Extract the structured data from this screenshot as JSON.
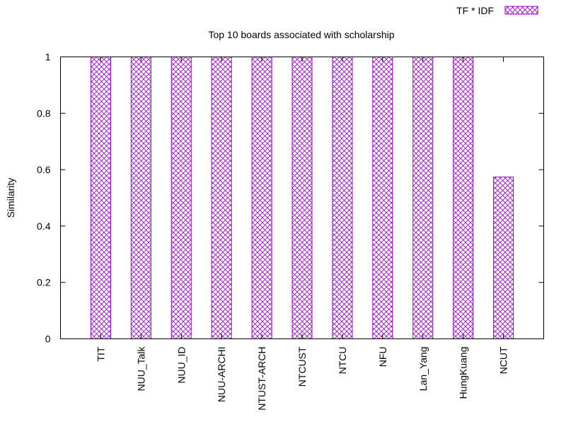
{
  "chart_data": {
    "type": "bar",
    "title": "Top 10 boards associated with scholarship",
    "xlabel": "",
    "ylabel": "Similarity",
    "ylim": [
      0,
      1
    ],
    "yticks": [
      0,
      0.2,
      0.4,
      0.6,
      0.8,
      1
    ],
    "ytick_labels": [
      "0",
      "0.2",
      "0.4",
      "0.6",
      "0.8",
      "1"
    ],
    "categories": [
      "TIT",
      "NUU_Talk",
      "NUU_ID",
      "NUU-ARCHI",
      "NTUST-ARCH",
      "NTCUST",
      "NTCU",
      "NFU",
      "Lan_Yang",
      "HungKuang",
      "NCUT"
    ],
    "series": [
      {
        "name": "TF * IDF",
        "values": [
          1,
          1,
          1,
          1,
          1,
          1,
          1,
          1,
          1,
          1,
          0.574
        ]
      }
    ],
    "legend_position": "top-right",
    "grid": false,
    "bar_color": "#9400d3",
    "bar_fill": "crosshatch"
  }
}
